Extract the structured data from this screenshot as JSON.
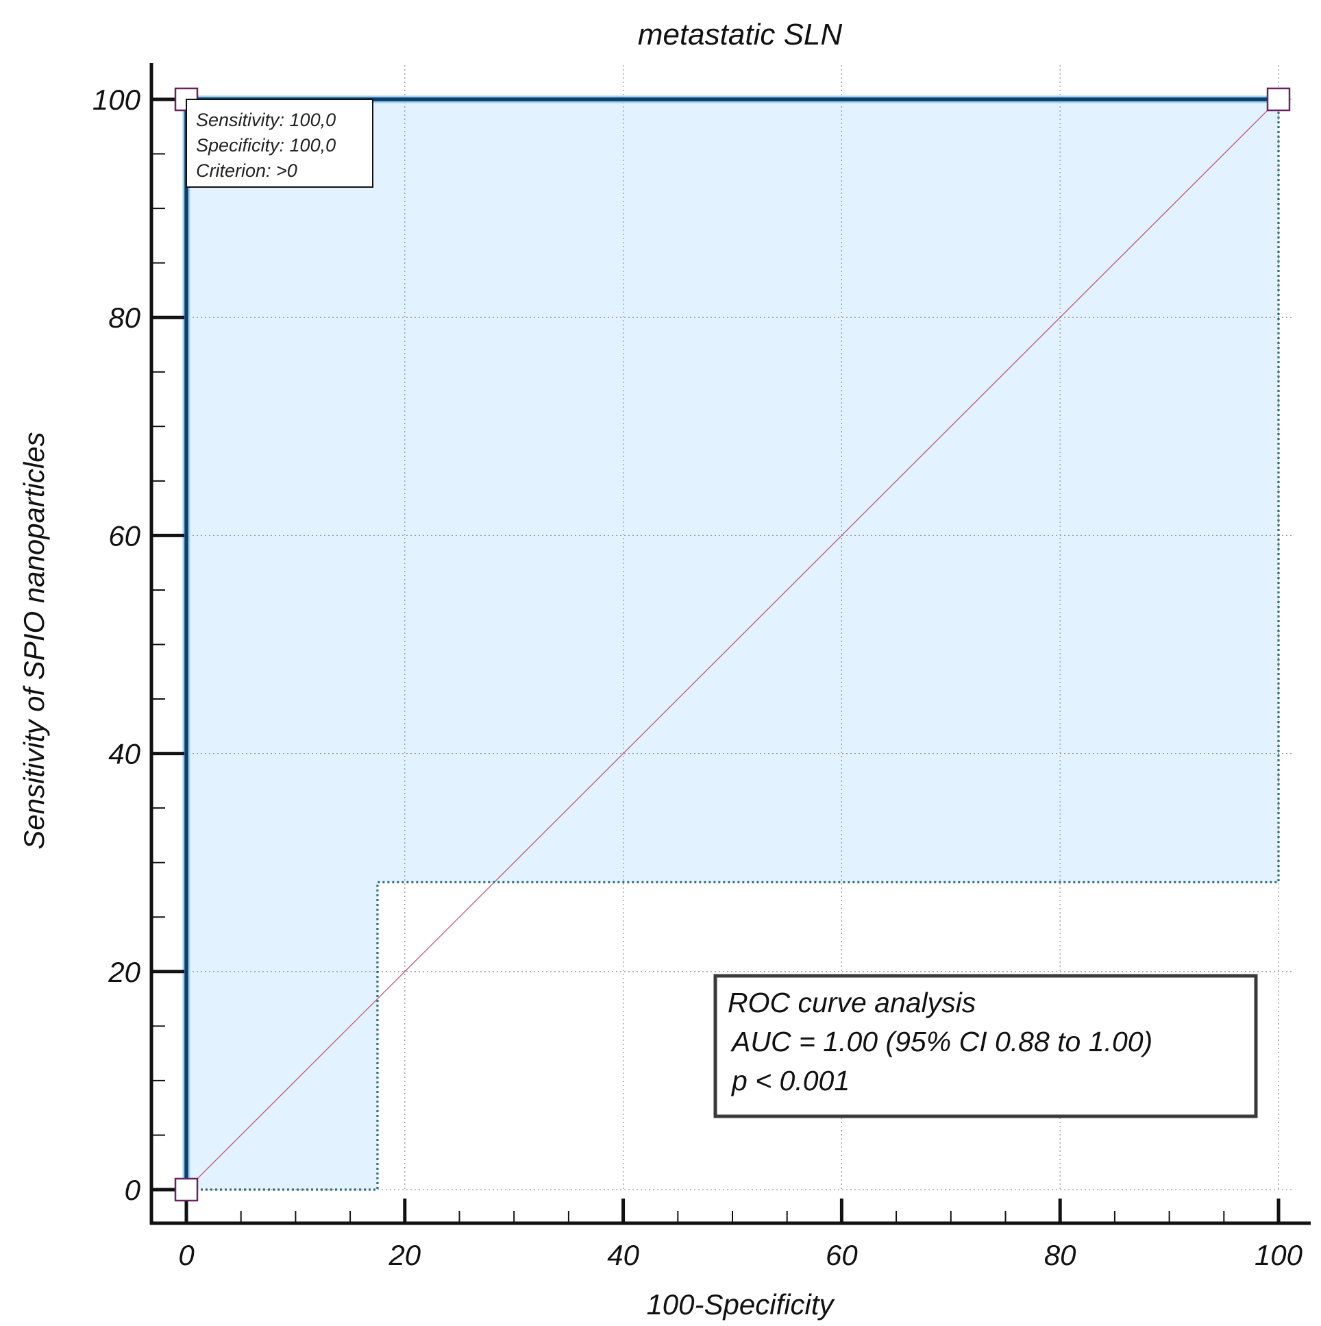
{
  "chart_data": {
    "type": "line",
    "title": "metastatic SLN",
    "xlabel": "100-Specificity",
    "ylabel": "Sensitivity of SPIO nanoparticles",
    "xlim": [
      0,
      100
    ],
    "ylim": [
      0,
      100
    ],
    "xticks": [
      "0",
      "20",
      "40",
      "60",
      "80",
      "100"
    ],
    "yticks": [
      "0",
      "20",
      "40",
      "60",
      "80",
      "100"
    ],
    "grid": true,
    "series": [
      {
        "role": "roc-curve",
        "x": [
          0,
          0,
          100
        ],
        "y": [
          0,
          100,
          100
        ],
        "color": "#0c3f6e"
      },
      {
        "role": "reference-diagonal",
        "x": [
          0,
          100
        ],
        "y": [
          0,
          100
        ],
        "color": "#c06080"
      },
      {
        "role": "confidence-lower-bound",
        "x": [
          0,
          17.5,
          17.5,
          100,
          100
        ],
        "y": [
          0,
          0,
          28.2,
          28.2,
          100
        ],
        "color": "#2d6f80"
      }
    ],
    "markers": [
      {
        "x": 0,
        "y": 0
      },
      {
        "x": 0,
        "y": 100
      },
      {
        "x": 100,
        "y": 100
      }
    ],
    "colors": {
      "confidence_fill": "#e3f2ff",
      "marker_stroke": "#6b2060"
    },
    "tooltip": {
      "lines": [
        "Sensitivity: 100,0",
        "Specificity: 100,0",
        "Criterion: >0"
      ]
    },
    "annotation": {
      "lines": [
        "ROC curve analysis",
        "AUC = 1.00 (95% CI 0.88 to 1.00)",
        "p < 0.001"
      ]
    }
  }
}
